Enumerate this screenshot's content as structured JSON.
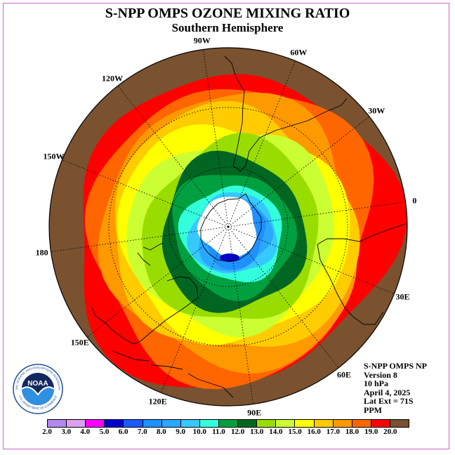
{
  "title": "S-NPP OMPS OZONE MIXING RATIO",
  "subtitle": "Southern Hemisphere",
  "longitude_labels": [
    {
      "text": "90W",
      "lon": -90
    },
    {
      "text": "60W",
      "lon": -60
    },
    {
      "text": "30W",
      "lon": -30
    },
    {
      "text": "0",
      "lon": 0
    },
    {
      "text": "30E",
      "lon": 30
    },
    {
      "text": "60E",
      "lon": 60
    },
    {
      "text": "90E",
      "lon": 90
    },
    {
      "text": "120E",
      "lon": 120
    },
    {
      "text": "150E",
      "lon": 150
    },
    {
      "text": "180",
      "lon": 180
    },
    {
      "text": "150W",
      "lon": -150
    },
    {
      "text": "120W",
      "lon": -120
    }
  ],
  "info": {
    "line1": "S-NPP OMPS NP",
    "line2": "Version 8",
    "line3": "10 hPa",
    "line4": "April 4, 2025",
    "line5": "Lat Ext = 71S",
    "line6": "PPM"
  },
  "logo": {
    "name": "NOAA",
    "text": "NOAA",
    "ring_text": "NATIONAL OCEANIC AND ATMOSPHERIC ADMINISTRATION",
    "ring_text_bottom": "U.S. DEPARTMENT OF COMMERCE"
  },
  "colorbar": {
    "ticks": [
      "2.0",
      "3.0",
      "4.0",
      "5.0",
      "6.0",
      "7.0",
      "8.0",
      "9.0",
      "10.0",
      "11.0",
      "12.0",
      "13.0",
      "14.0",
      "15.0",
      "16.0",
      "17.0",
      "18.0",
      "19.0",
      "20.0"
    ],
    "colors": [
      "#b388f0",
      "#dda0f0",
      "#ff00ff",
      "#0000cc",
      "#1a5cff",
      "#1e90ff",
      "#2aa8ff",
      "#36c8ff",
      "#33ffdd",
      "#00a040",
      "#006622",
      "#99dd00",
      "#ccff33",
      "#ffff00",
      "#ffcc00",
      "#ff9900",
      "#ff6600",
      "#ff0000",
      "#7a5230"
    ]
  },
  "map_colors": {
    "polar_cap": "#ffffff",
    "outer": "#7a5230",
    "c19": "#ff0000",
    "c18": "#ff6600",
    "c17": "#ff9900",
    "c16": "#ffcc00",
    "c15": "#ffff00",
    "c14": "#ccff33",
    "c13": "#99dd00",
    "c12": "#006622",
    "c11": "#00a040",
    "c10": "#33ffdd",
    "c9": "#36c8ff",
    "c8": "#2aa8ff",
    "c7": "#1e90ff",
    "c6": "#0000cc"
  }
}
